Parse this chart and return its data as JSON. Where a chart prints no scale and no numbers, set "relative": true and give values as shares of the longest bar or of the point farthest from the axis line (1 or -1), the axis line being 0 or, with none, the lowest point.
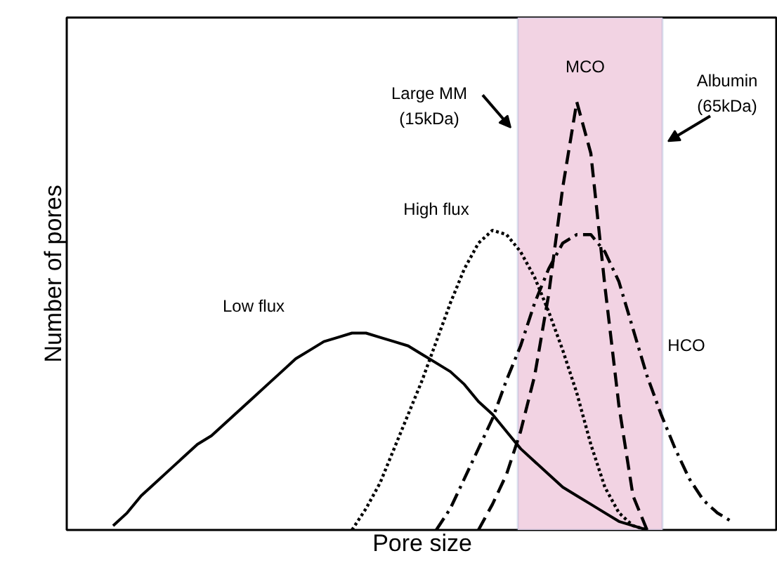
{
  "chart_data": {
    "type": "line",
    "relative": true,
    "xlabel": "Pore size",
    "ylabel": "Number of pores",
    "categories": [
      null,
      null,
      null,
      null,
      null,
      null,
      null,
      null,
      null,
      null,
      null,
      null,
      null,
      null,
      null,
      null,
      null,
      null,
      null,
      null,
      null,
      null,
      null,
      null,
      null,
      null,
      null,
      null,
      null,
      null,
      null,
      null,
      null,
      null,
      null,
      null,
      null,
      null,
      null,
      null,
      null,
      null,
      null,
      null,
      null,
      null,
      null,
      null,
      null,
      null,
      null
    ],
    "series": [
      {
        "name": "Low flux",
        "color": "#000000",
        "line_style": "solid",
        "values": [
          null,
          null,
          null,
          0.01,
          0.04,
          0.08,
          0.11,
          0.14,
          0.17,
          0.2,
          0.22,
          0.25,
          0.28,
          0.31,
          0.34,
          0.37,
          0.4,
          0.42,
          0.44,
          0.45,
          0.46,
          0.46,
          0.45,
          0.44,
          0.43,
          0.41,
          0.39,
          0.37,
          0.34,
          0.3,
          0.27,
          0.23,
          0.19,
          0.16,
          0.13,
          0.1,
          0.08,
          0.06,
          0.04,
          0.02,
          0.01,
          0,
          null,
          null,
          null,
          null,
          null,
          null,
          null,
          null,
          null
        ]
      },
      {
        "name": "High flux",
        "color": "#000000",
        "line_style": "dotted",
        "values": [
          null,
          null,
          null,
          null,
          null,
          null,
          null,
          null,
          null,
          null,
          null,
          null,
          null,
          null,
          null,
          null,
          null,
          null,
          null,
          null,
          0,
          0.05,
          0.11,
          0.19,
          0.27,
          0.35,
          0.44,
          0.53,
          0.61,
          0.67,
          0.7,
          0.69,
          0.65,
          0.59,
          0.51,
          0.42,
          0.32,
          0.2,
          0.1,
          0.04,
          0.01,
          0,
          null,
          null,
          null,
          null,
          null,
          null,
          null,
          null,
          null
        ]
      },
      {
        "name": "MCO",
        "color": "#000000",
        "line_style": "dashed",
        "values": [
          null,
          null,
          null,
          null,
          null,
          null,
          null,
          null,
          null,
          null,
          null,
          null,
          null,
          null,
          null,
          null,
          null,
          null,
          null,
          null,
          null,
          null,
          null,
          null,
          null,
          null,
          null,
          null,
          null,
          0,
          0.06,
          0.13,
          0.23,
          0.36,
          0.55,
          0.8,
          1.0,
          0.88,
          0.57,
          0.29,
          0.08,
          0,
          null,
          null,
          null,
          null,
          null,
          null,
          null,
          null,
          null
        ]
      },
      {
        "name": "HCO",
        "color": "#000000",
        "line_style": "dashdot",
        "values": [
          null,
          null,
          null,
          null,
          null,
          null,
          null,
          null,
          null,
          null,
          null,
          null,
          null,
          null,
          null,
          null,
          null,
          null,
          null,
          null,
          null,
          null,
          null,
          null,
          null,
          null,
          0,
          0.05,
          0.12,
          0.19,
          0.26,
          0.35,
          0.43,
          0.53,
          0.61,
          0.67,
          0.69,
          0.69,
          0.65,
          0.58,
          0.47,
          0.36,
          0.27,
          0.19,
          0.12,
          0.07,
          0.04,
          0.02,
          null,
          null,
          null
        ]
      }
    ],
    "annotations": [
      "Large MM\n(15kDa)",
      "Albumin\n(65kDa)"
    ]
  }
}
